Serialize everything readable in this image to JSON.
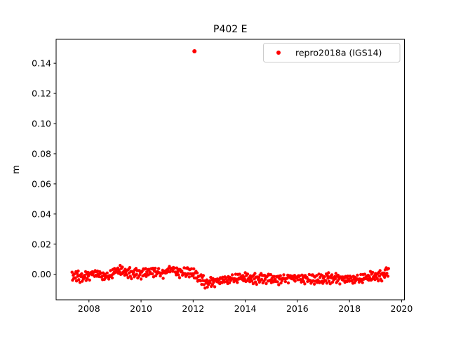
{
  "chart_data": {
    "type": "scatter",
    "title": "P402 E",
    "xlabel": "",
    "ylabel": "m",
    "xlim": [
      2006.74,
      2020.11
    ],
    "ylim": [
      -0.0169,
      0.1559
    ],
    "grid": false,
    "xticks": [
      2008,
      2010,
      2012,
      2014,
      2016,
      2018,
      2020
    ],
    "xtick_labels": [
      "2008",
      "2010",
      "2012",
      "2014",
      "2016",
      "2018",
      "2020"
    ],
    "yticks": [
      0.0,
      0.02,
      0.04,
      0.06,
      0.08,
      0.1,
      0.12,
      0.14
    ],
    "ytick_labels": [
      "0.00",
      "0.02",
      "0.04",
      "0.06",
      "0.08",
      "0.10",
      "0.12",
      "0.14"
    ],
    "legend": {
      "position": "upper right",
      "entries": [
        {
          "label": "repro2018a (IGS14)",
          "color": "#ff0000",
          "marker": "dot"
        }
      ]
    },
    "series": [
      {
        "name": "repro2018a (IGS14)",
        "color": "#ff0000",
        "marker_size": 2.2,
        "band": {
          "x_start": 2007.35,
          "x_end": 2019.5,
          "n": 560,
          "noise_amp": 0.0038,
          "mean_profile": [
            [
              2007.35,
              -0.001
            ],
            [
              2007.8,
              -0.002
            ],
            [
              2008.2,
              0.001
            ],
            [
              2008.7,
              -0.002
            ],
            [
              2009.1,
              0.003
            ],
            [
              2009.5,
              0.001
            ],
            [
              2010.0,
              0.0005
            ],
            [
              2010.4,
              0.002
            ],
            [
              2010.9,
              0.0005
            ],
            [
              2011.1,
              0.004
            ],
            [
              2011.5,
              0.001
            ],
            [
              2011.9,
              0.0015
            ],
            [
              2012.2,
              -0.002
            ],
            [
              2012.5,
              -0.006
            ],
            [
              2013.0,
              -0.004
            ],
            [
              2013.4,
              -0.0035
            ],
            [
              2013.9,
              -0.002
            ],
            [
              2014.3,
              -0.003
            ],
            [
              2014.8,
              -0.0025
            ],
            [
              2015.3,
              -0.0035
            ],
            [
              2015.8,
              -0.002
            ],
            [
              2016.3,
              -0.003
            ],
            [
              2016.8,
              -0.0035
            ],
            [
              2017.3,
              -0.0025
            ],
            [
              2017.8,
              -0.003
            ],
            [
              2018.3,
              -0.0035
            ],
            [
              2018.8,
              -0.0015
            ],
            [
              2019.2,
              -0.001
            ],
            [
              2019.5,
              0.002
            ]
          ],
          "jitter_a": [
            0.9,
            -0.6,
            0.3,
            -1.0,
            0.55,
            0.1,
            -0.35,
            0.8,
            -0.85,
            0.45,
            -0.15,
            1.0,
            -0.5,
            0.2,
            -0.95,
            0.65,
            -0.25
          ],
          "jitter_b": [
            0.2,
            -0.7,
            0.5,
            0.95,
            -0.3,
            -1.0,
            0.6,
            0.05,
            -0.55,
            0.85,
            -0.15,
            0.35,
            -0.9
          ]
        },
        "outliers": [
          [
            2012.05,
            0.148
          ]
        ]
      }
    ],
    "colors": {
      "marker": "#ff0000",
      "spine": "#000000",
      "legend_border": "#cccccc",
      "background": "#ffffff"
    }
  }
}
